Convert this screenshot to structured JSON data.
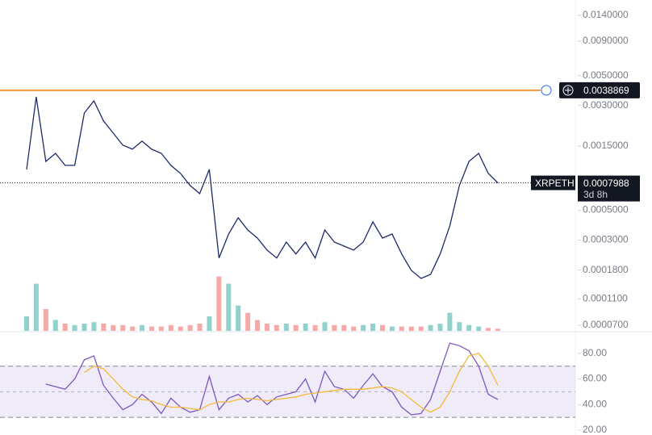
{
  "chart_data": [
    {
      "type": "line",
      "log_scale": true,
      "ylim": [
        6.36e-05,
        0.0182
      ],
      "yticks": [
        {
          "value": 0.014,
          "label": "0.0140000"
        },
        {
          "value": 0.009,
          "label": "0.0090000"
        },
        {
          "value": 0.005,
          "label": "0.0050000"
        },
        {
          "value": 0.003,
          "label": "0.0030000"
        },
        {
          "value": 0.0015,
          "label": "0.0015000"
        },
        {
          "value": 0.0005,
          "label": "0.0005000"
        },
        {
          "value": 0.0003,
          "label": "0.0003000"
        },
        {
          "value": 0.00018,
          "label": "0.0001800"
        },
        {
          "value": 0.00011,
          "label": "0.0001100"
        },
        {
          "value": 7e-05,
          "label": "0.0000700"
        }
      ],
      "series": [
        {
          "name": "XRPETH",
          "color": "#1c2a6b",
          "values": [
            0.001005,
            0.003476,
            0.001153,
            0.001324,
            0.001077,
            0.001077,
            0.002637,
            0.003245,
            0.002301,
            0.001871,
            0.001521,
            0.001419,
            0.001629,
            0.001419,
            0.001324,
            0.001077,
            0.000938,
            0.000763,
            0.000665,
            0.001005,
            0.000221,
            0.000333,
            0.00044,
            0.000357,
            0.000311,
            0.000253,
            0.000221,
            0.00029,
            0.000237,
            0.00029,
            0.000221,
            0.000357,
            0.00029,
            0.000271,
            0.000253,
            0.00029,
            0.00041,
            0.000311,
            0.000333,
            0.000237,
            0.000179,
            0.000156,
            0.000167,
            0.000237,
            0.000383,
            0.000763,
            0.001153,
            0.001324,
            0.000938,
            0.0007988
          ]
        }
      ],
      "volume": [
        20,
        65,
        30,
        15,
        10,
        8,
        10,
        12,
        10,
        8,
        8,
        6,
        8,
        6,
        6,
        8,
        6,
        8,
        10,
        20,
        75,
        65,
        35,
        25,
        15,
        10,
        8,
        10,
        8,
        10,
        8,
        12,
        8,
        8,
        6,
        8,
        10,
        8,
        6,
        6,
        6,
        6,
        8,
        10,
        25,
        12,
        8,
        6,
        4,
        3
      ],
      "horizontal_line": {
        "value": 0.0038869,
        "color": "#f57c00"
      },
      "countdown": "3d 8h"
    },
    {
      "type": "line",
      "ylim": [
        16.25,
        96.9
      ],
      "yticks": [
        {
          "value": 80,
          "label": "80.00"
        },
        {
          "value": 60,
          "label": "60.00"
        },
        {
          "value": 40,
          "label": "40.00"
        },
        {
          "value": 20,
          "label": "20.00"
        }
      ],
      "bands": [
        30,
        50,
        70
      ],
      "band_color": "#7e57c2",
      "series": [
        {
          "color": "#7e57c2",
          "values": [
            null,
            null,
            56,
            54,
            52,
            60,
            75,
            78,
            55,
            45,
            36,
            40,
            48,
            42,
            33,
            45,
            38,
            34,
            36,
            62,
            36,
            45,
            48,
            42,
            47,
            40,
            46,
            48,
            50,
            60,
            42,
            66,
            54,
            52,
            45,
            55,
            64,
            54,
            50,
            38,
            32,
            33,
            44,
            66,
            88,
            86,
            82,
            70,
            48,
            44
          ]
        },
        {
          "color": "#f5b93a",
          "values": [
            null,
            null,
            null,
            null,
            null,
            null,
            65,
            70,
            68,
            60,
            52,
            46,
            44,
            43,
            40,
            38,
            38,
            37,
            36,
            40,
            42,
            42,
            44,
            45,
            44,
            43,
            44,
            45,
            46,
            48,
            49,
            50,
            51,
            52,
            52,
            52,
            53,
            54,
            53,
            50,
            44,
            38,
            34,
            38,
            50,
            66,
            78,
            80,
            70,
            55
          ]
        }
      ]
    }
  ]
}
